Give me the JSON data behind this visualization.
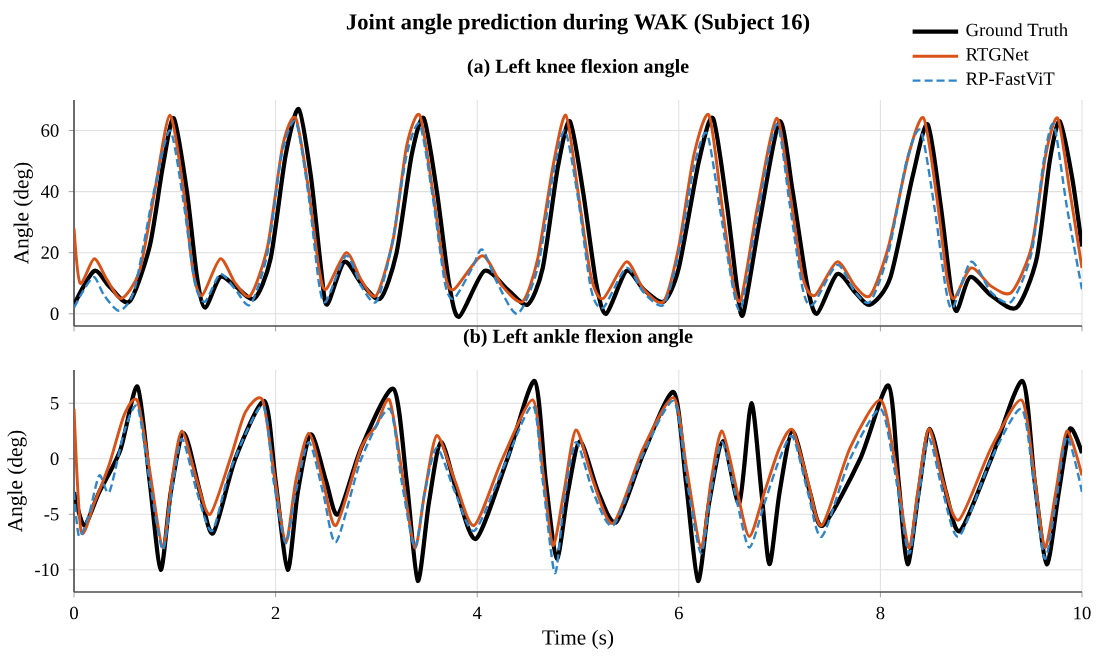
{
  "chart_data": [
    {
      "type": "line",
      "title": "Joint angle prediction during WAK (Subject 16)",
      "subtitle": "(a) Left knee flexion angle",
      "ylabel": "Angle (deg)",
      "xlim": [
        0,
        10
      ],
      "xticks": [
        0,
        2,
        4,
        6,
        8,
        10
      ],
      "ylim": [
        -4,
        70
      ],
      "yticks": [
        0,
        20,
        40,
        60
      ],
      "tick_labels": "y",
      "grid": true,
      "legend": "top right",
      "series": [
        {
          "name": "Ground Truth",
          "color": "#000000",
          "line_style": "solid",
          "x": [
            0,
            0.2,
            0.35,
            0.55,
            0.75,
            0.88,
            0.99,
            1.12,
            1.22,
            1.3,
            1.45,
            1.6,
            1.79,
            1.95,
            2.1,
            2.23,
            2.35,
            2.45,
            2.51,
            2.68,
            2.85,
            3.04,
            3.2,
            3.35,
            3.47,
            3.6,
            3.72,
            3.82,
            4.07,
            4.3,
            4.5,
            4.65,
            4.8,
            4.92,
            5.05,
            5.18,
            5.28,
            5.48,
            5.65,
            5.85,
            6.0,
            6.2,
            6.34,
            6.48,
            6.58,
            6.64,
            6.8,
            7.0,
            7.13,
            7.27,
            7.37,
            7.57,
            7.75,
            7.9,
            8.1,
            8.32,
            8.47,
            8.6,
            8.7,
            8.76,
            8.89,
            9.1,
            9.35,
            9.55,
            9.68,
            9.78,
            9.9,
            10
          ],
          "values": [
            3,
            14,
            9,
            4,
            22,
            48,
            64,
            40,
            12,
            2,
            12,
            9,
            5,
            18,
            52,
            67,
            45,
            15,
            3,
            17,
            10,
            5,
            20,
            52,
            64,
            40,
            10,
            -1,
            14,
            8,
            3,
            15,
            48,
            63,
            40,
            10,
            0,
            14,
            8,
            4,
            15,
            50,
            64,
            35,
            8,
            0,
            30,
            63,
            40,
            10,
            0,
            13,
            7,
            3,
            12,
            45,
            62,
            35,
            8,
            1,
            12,
            6,
            2,
            18,
            50,
            63,
            45,
            22
          ]
        },
        {
          "name": "RTGNet",
          "color": "#d95319",
          "line_style": "solid",
          "x": [
            0,
            0.06,
            0.2,
            0.33,
            0.47,
            0.65,
            0.8,
            0.95,
            1.08,
            1.18,
            1.27,
            1.45,
            1.6,
            1.75,
            1.92,
            2.07,
            2.2,
            2.33,
            2.43,
            2.5,
            2.7,
            2.85,
            3.0,
            3.17,
            3.3,
            3.43,
            3.56,
            3.68,
            3.77,
            4.05,
            4.25,
            4.45,
            4.6,
            4.75,
            4.88,
            5.0,
            5.13,
            5.25,
            5.48,
            5.65,
            5.85,
            6.0,
            6.15,
            6.3,
            6.43,
            6.54,
            6.62,
            6.78,
            6.97,
            7.1,
            7.23,
            7.35,
            7.57,
            7.75,
            7.9,
            8.08,
            8.28,
            8.43,
            8.56,
            8.66,
            8.73,
            8.9,
            9.1,
            9.3,
            9.5,
            9.64,
            9.76,
            9.88,
            10
          ],
          "values": [
            28,
            10,
            18,
            11,
            5,
            14,
            40,
            65,
            42,
            14,
            6,
            18,
            10,
            6,
            22,
            55,
            64,
            40,
            15,
            8,
            20,
            11,
            6,
            25,
            55,
            65,
            40,
            13,
            8,
            19,
            9,
            4,
            18,
            48,
            65,
            40,
            12,
            5,
            17,
            8,
            4,
            22,
            52,
            65,
            35,
            10,
            5,
            35,
            64,
            40,
            12,
            6,
            17,
            9,
            6,
            22,
            52,
            64,
            38,
            12,
            5,
            15,
            9,
            7,
            22,
            52,
            64,
            40,
            15
          ]
        },
        {
          "name": "RP-FastViT",
          "color": "#2e86c8",
          "line_style": "dashed",
          "x": [
            0,
            0.1,
            0.2,
            0.3,
            0.45,
            0.6,
            0.78,
            0.95,
            1.08,
            1.2,
            1.3,
            1.45,
            1.6,
            1.75,
            1.92,
            2.06,
            2.2,
            2.33,
            2.43,
            2.5,
            2.7,
            2.85,
            3.0,
            3.15,
            3.3,
            3.43,
            3.56,
            3.68,
            3.77,
            3.95,
            4.05,
            4.2,
            4.4,
            4.6,
            4.75,
            4.87,
            5.0,
            5.13,
            5.25,
            5.48,
            5.65,
            5.85,
            6.0,
            6.15,
            6.28,
            6.42,
            6.54,
            6.62,
            6.78,
            6.97,
            7.1,
            7.23,
            7.33,
            7.57,
            7.75,
            7.9,
            8.08,
            8.26,
            8.4,
            8.54,
            8.65,
            8.72,
            8.9,
            9.1,
            9.3,
            9.5,
            9.62,
            9.72,
            9.85,
            10
          ],
          "values": [
            2,
            8,
            12,
            6,
            1,
            8,
            38,
            60,
            38,
            10,
            4,
            13,
            8,
            3,
            20,
            52,
            63,
            38,
            10,
            4,
            19,
            9,
            4,
            22,
            52,
            62,
            38,
            10,
            5,
            15,
            21,
            10,
            0,
            15,
            45,
            60,
            38,
            8,
            2,
            15,
            7,
            3,
            20,
            48,
            59,
            32,
            8,
            2,
            32,
            62,
            36,
            8,
            3,
            16,
            7,
            4,
            20,
            50,
            60,
            34,
            8,
            2,
            17,
            7,
            4,
            20,
            50,
            62,
            35,
            8
          ]
        }
      ]
    },
    {
      "type": "line",
      "title": "(b) Left ankle flexion angle",
      "xlabel": "Time (s)",
      "ylabel": "Angle (deg)",
      "xlim": [
        0,
        10
      ],
      "xticks": [
        0,
        2,
        4,
        6,
        8,
        10
      ],
      "ylim": [
        -12,
        8
      ],
      "yticks": [
        -10,
        -5,
        0,
        5
      ],
      "grid": true,
      "series": [
        {
          "color": "#000000",
          "line_style": "solid",
          "x": [
            0,
            0.1,
            0.25,
            0.46,
            0.63,
            0.75,
            0.86,
            0.96,
            1.09,
            1.25,
            1.38,
            1.6,
            1.89,
            2.0,
            2.12,
            2.22,
            2.35,
            2.5,
            2.62,
            2.85,
            3.17,
            3.3,
            3.41,
            3.52,
            3.64,
            3.8,
            3.99,
            4.3,
            4.57,
            4.68,
            4.79,
            4.9,
            5.02,
            5.2,
            5.38,
            5.65,
            5.95,
            6.07,
            6.19,
            6.3,
            6.44,
            6.6,
            6.72,
            6.82,
            6.9,
            7.0,
            7.13,
            7.3,
            7.43,
            7.8,
            8.08,
            8.18,
            8.27,
            8.38,
            8.49,
            8.65,
            8.79,
            9.1,
            9.41,
            9.53,
            9.65,
            9.77,
            9.88,
            10
          ],
          "values": [
            -3,
            -6,
            -3,
            0.8,
            6.5,
            -2,
            -10,
            -3,
            2.3,
            -3,
            -6.7,
            0,
            5.2,
            -2,
            -10,
            -3,
            2.2,
            -2,
            -5,
            1,
            6.3,
            -2,
            -11,
            -4,
            1.5,
            -3,
            -7.2,
            0,
            7,
            -2,
            -9,
            -3,
            1.6,
            -3,
            -5.7,
            0.5,
            6,
            -2,
            -11,
            -4,
            1.6,
            -4,
            5,
            -3,
            -9.5,
            -3,
            2.5,
            -3,
            -6,
            0,
            6.6,
            -2,
            -9.5,
            -3,
            2.7,
            -3,
            -6.5,
            0,
            7,
            -2,
            -9.5,
            -3,
            2.7,
            0.5
          ]
        },
        {
          "color": "#d95319",
          "line_style": "solid",
          "x": [
            0,
            0.07,
            0.2,
            0.35,
            0.5,
            0.63,
            0.75,
            0.88,
            0.97,
            1.07,
            1.22,
            1.35,
            1.55,
            1.7,
            1.87,
            1.98,
            2.1,
            2.2,
            2.33,
            2.47,
            2.6,
            2.85,
            3.0,
            3.13,
            3.25,
            3.38,
            3.48,
            3.6,
            3.78,
            3.97,
            4.25,
            4.55,
            4.65,
            4.75,
            4.86,
            4.98,
            5.15,
            5.35,
            5.65,
            5.95,
            6.08,
            6.22,
            6.32,
            6.43,
            6.58,
            6.7,
            6.85,
            7.0,
            7.13,
            7.28,
            7.42,
            7.7,
            8.0,
            8.14,
            8.28,
            8.37,
            8.48,
            8.62,
            8.78,
            9.1,
            9.4,
            9.52,
            9.63,
            9.74,
            9.85,
            10
          ],
          "values": [
            4.5,
            -6.5,
            -4,
            -0.5,
            4,
            5.2,
            -1,
            -8,
            -2,
            2.5,
            -2,
            -5,
            0,
            4.2,
            5.3,
            -1,
            -7.5,
            -2,
            2.3,
            -2,
            -6,
            1,
            3,
            5.3,
            -1,
            -8,
            -3,
            2.1,
            -2,
            -6,
            0,
            5.3,
            -1,
            -7.8,
            -3,
            2.6,
            -2,
            -5.8,
            1,
            5.5,
            -1,
            -8,
            -2,
            2.5,
            -3,
            -7,
            -3,
            1,
            2.6,
            -2,
            -6,
            1,
            5.3,
            0,
            -8,
            -3,
            2.7,
            -2,
            -5.5,
            1,
            5.3,
            -1,
            -8,
            -3,
            2.5,
            -1.5
          ]
        },
        {
          "color": "#2e86c8",
          "line_style": "dashed",
          "x": [
            0,
            0.05,
            0.15,
            0.25,
            0.35,
            0.5,
            0.63,
            0.75,
            0.88,
            0.97,
            1.07,
            1.22,
            1.37,
            1.55,
            1.87,
            1.98,
            2.1,
            2.2,
            2.33,
            2.47,
            2.6,
            2.85,
            3.13,
            3.25,
            3.38,
            3.48,
            3.6,
            3.78,
            3.97,
            4.25,
            4.55,
            4.65,
            4.77,
            4.86,
            4.98,
            5.15,
            5.35,
            5.65,
            5.95,
            6.08,
            6.22,
            6.32,
            6.43,
            6.58,
            6.7,
            6.85,
            7.0,
            7.13,
            7.28,
            7.42,
            7.7,
            8.0,
            8.14,
            8.28,
            8.37,
            8.48,
            8.62,
            8.78,
            9.1,
            9.4,
            9.52,
            9.63,
            9.74,
            9.85,
            10
          ],
          "values": [
            -3,
            -7,
            -5,
            -1.5,
            -3,
            2.5,
            4.7,
            -2,
            -8.2,
            -3,
            1.8,
            -3,
            -6.5,
            -1,
            4.8,
            -2,
            -7.6,
            -3,
            1.5,
            -3,
            -7.5,
            0,
            4.5,
            -2,
            -8,
            -3,
            1,
            -3,
            -6.5,
            -1,
            4.8,
            -2,
            -10.3,
            -4,
            1.5,
            -3,
            -6,
            0.5,
            5.2,
            -2,
            -8.5,
            -3,
            1.5,
            -4,
            -8,
            -4,
            0,
            2,
            -3,
            -7,
            0,
            4.5,
            -1,
            -8.5,
            -4,
            1.8,
            -3,
            -7,
            0,
            4.5,
            -2,
            -9,
            -4,
            2,
            -3
          ]
        }
      ]
    }
  ]
}
